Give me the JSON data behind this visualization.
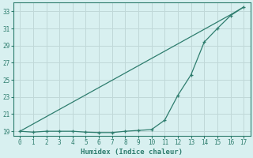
{
  "xlabel": "Humidex (Indice chaleur)",
  "line1_x": [
    0,
    1,
    2,
    3,
    4,
    5,
    6,
    7,
    8,
    9,
    10,
    11,
    12,
    13,
    14,
    15,
    16,
    17
  ],
  "line1_y": [
    19.0,
    19.85,
    20.7,
    21.55,
    22.4,
    23.25,
    24.1,
    24.95,
    25.8,
    26.65,
    27.5,
    28.35,
    29.2,
    30.05,
    30.9,
    31.75,
    32.6,
    33.5
  ],
  "line2_x": [
    0,
    1,
    2,
    3,
    4,
    5,
    6,
    7,
    8,
    9,
    10,
    11,
    12,
    13,
    14,
    15,
    16,
    17
  ],
  "line2_y": [
    19.0,
    18.9,
    19.0,
    19.0,
    19.0,
    18.9,
    18.85,
    18.85,
    19.0,
    19.1,
    19.2,
    20.3,
    23.2,
    25.6,
    29.4,
    31.0,
    32.5,
    33.5
  ],
  "line_color": "#2e7d6e",
  "bg_color": "#d8f0f0",
  "grid_color": "#c0d8d8",
  "xlim": [
    -0.5,
    17.5
  ],
  "ylim": [
    18.5,
    34.0
  ],
  "xticks": [
    0,
    1,
    2,
    3,
    4,
    5,
    6,
    7,
    8,
    9,
    10,
    11,
    12,
    13,
    14,
    15,
    16,
    17
  ],
  "yticks": [
    19,
    21,
    23,
    25,
    27,
    29,
    31,
    33
  ]
}
